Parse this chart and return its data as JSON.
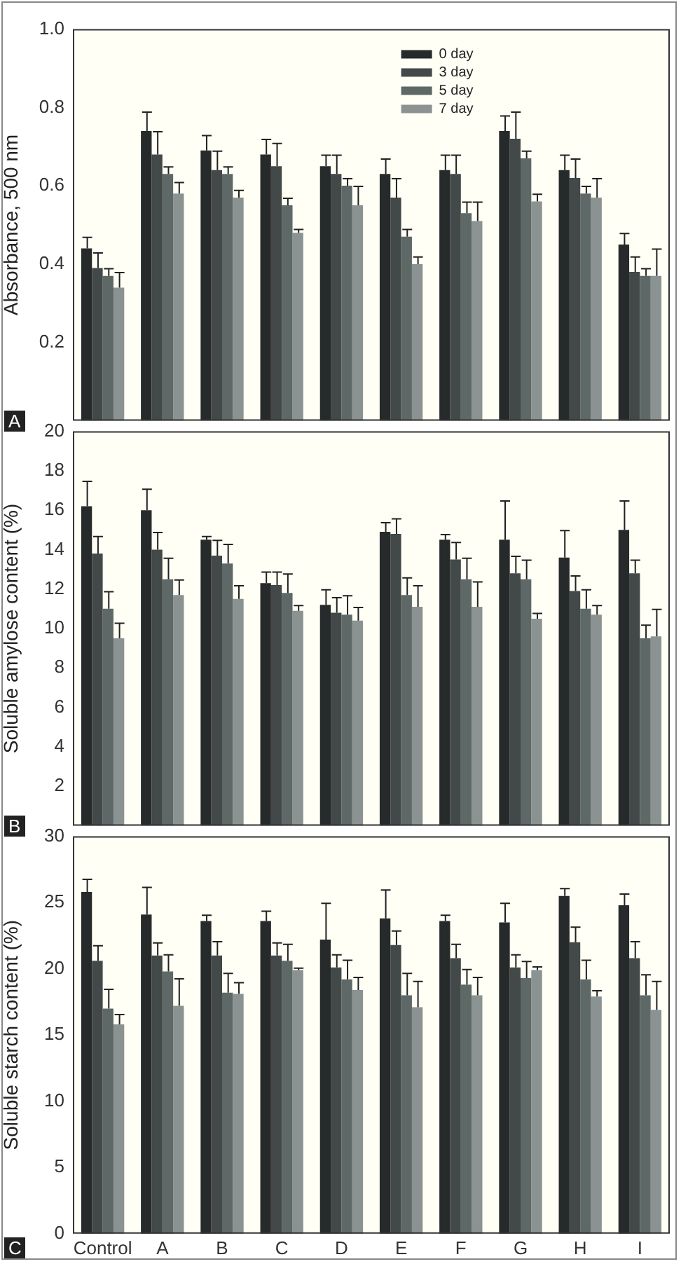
{
  "chart_data": [
    {
      "type": "bar",
      "ylabel": "Absorbance, 500 nm",
      "categories": [
        null,
        null,
        null,
        null,
        null,
        null,
        null,
        null,
        null,
        null
      ],
      "ylim": [
        0,
        1
      ],
      "yticks": [
        0.2,
        0.4,
        0.6,
        0.8,
        {
          "value": 1,
          "label": "1.0"
        }
      ],
      "grid": false,
      "legend": "top",
      "tick_labels": "y",
      "annotations": [
        "A"
      ],
      "series": [
        {
          "name": "0 day",
          "color": "#262a2a",
          "values": [
            0.44,
            0.74,
            0.69,
            0.68,
            0.65,
            0.63,
            0.64,
            0.74,
            0.64,
            0.45
          ],
          "errors": [
            0.03,
            0.05,
            0.04,
            0.04,
            0.03,
            0.04,
            0.04,
            0.04,
            0.04,
            0.03
          ]
        },
        {
          "name": "3 day",
          "color": "#424948",
          "values": [
            0.39,
            0.68,
            0.64,
            0.65,
            0.63,
            0.57,
            0.63,
            0.72,
            0.62,
            0.38
          ],
          "errors": [
            0.04,
            0.06,
            0.05,
            0.06,
            0.05,
            0.05,
            0.05,
            0.07,
            0.05,
            0.04
          ]
        },
        {
          "name": "5 day",
          "color": "#5e6866",
          "values": [
            0.37,
            0.63,
            0.63,
            0.55,
            0.6,
            0.47,
            0.53,
            0.67,
            0.58,
            0.37
          ],
          "errors": [
            0.02,
            0.02,
            0.02,
            0.02,
            0.02,
            0.02,
            0.03,
            0.02,
            0.02,
            0.02
          ]
        },
        {
          "name": "7 day",
          "color": "#8a9391",
          "values": [
            0.34,
            0.58,
            0.57,
            0.48,
            0.55,
            0.4,
            0.51,
            0.56,
            0.57,
            0.37
          ],
          "errors": [
            0.04,
            0.03,
            0.02,
            0.01,
            0.05,
            0.02,
            0.05,
            0.02,
            0.05,
            0.07
          ]
        }
      ]
    },
    {
      "type": "bar",
      "ylabel": "Soluble amylose content (%)",
      "categories": [
        null,
        null,
        null,
        null,
        null,
        null,
        null,
        null,
        null,
        null
      ],
      "ylim": [
        0,
        20
      ],
      "yticks": [
        2,
        4,
        6,
        8,
        10,
        12,
        14,
        16,
        18,
        20
      ],
      "grid": false,
      "legend": false,
      "tick_labels": "y",
      "annotations": [
        "B"
      ],
      "series": [
        {
          "color": "#262a2a",
          "values": [
            16.2,
            16.0,
            14.5,
            12.3,
            11.2,
            14.9,
            14.5,
            14.5,
            13.6,
            15.0
          ],
          "errors": [
            1.3,
            1.1,
            0.2,
            0.6,
            0.8,
            0.5,
            0.3,
            2.0,
            1.4,
            1.5
          ]
        },
        {
          "color": "#424948",
          "values": [
            13.8,
            14.0,
            13.7,
            12.2,
            10.8,
            14.8,
            13.5,
            12.8,
            11.9,
            12.8
          ],
          "errors": [
            0.9,
            0.9,
            0.8,
            0.7,
            0.8,
            0.8,
            0.9,
            0.9,
            0.8,
            0.7
          ]
        },
        {
          "color": "#5e6866",
          "values": [
            11.0,
            12.5,
            13.3,
            11.8,
            10.7,
            11.7,
            12.5,
            12.5,
            11.0,
            9.5
          ],
          "errors": [
            0.9,
            1.1,
            1.0,
            1.0,
            1.0,
            0.9,
            1.1,
            1.0,
            1.0,
            0.7
          ]
        },
        {
          "color": "#8a9391",
          "values": [
            9.5,
            11.7,
            11.5,
            10.9,
            10.4,
            11.1,
            11.1,
            10.5,
            10.7,
            9.6
          ],
          "errors": [
            0.8,
            0.8,
            0.7,
            0.3,
            0.7,
            1.1,
            1.3,
            0.3,
            0.5,
            1.4
          ]
        }
      ]
    },
    {
      "type": "bar",
      "ylabel": "Soluble starch content (%)",
      "categories": [
        "Control",
        "A",
        "B",
        "C",
        "D",
        "E",
        "F",
        "G",
        "H",
        "I"
      ],
      "ylim": [
        0,
        30
      ],
      "yticks": [
        0,
        5,
        10,
        15,
        20,
        25,
        30
      ],
      "grid": false,
      "legend": false,
      "annotations": [
        "C"
      ],
      "series": [
        {
          "color": "#262a2a",
          "values": [
            25.8,
            24.1,
            23.6,
            23.6,
            22.2,
            23.8,
            23.6,
            23.5,
            25.5,
            24.8
          ],
          "errors": [
            1.0,
            2.1,
            0.5,
            0.8,
            2.8,
            2.2,
            0.5,
            1.5,
            0.6,
            0.9
          ]
        },
        {
          "color": "#424948",
          "values": [
            20.6,
            21.0,
            21.0,
            21.0,
            20.1,
            21.8,
            20.8,
            20.1,
            22.0,
            20.8
          ],
          "errors": [
            1.2,
            1.0,
            1.1,
            1.0,
            1.0,
            1.1,
            1.1,
            1.0,
            1.2,
            1.3
          ]
        },
        {
          "color": "#5e6866",
          "values": [
            17.0,
            19.8,
            18.2,
            20.6,
            19.2,
            18.0,
            18.8,
            19.3,
            19.2,
            18.0
          ],
          "errors": [
            1.5,
            1.3,
            1.5,
            1.3,
            1.5,
            1.7,
            1.2,
            1.3,
            1.5,
            1.6
          ]
        },
        {
          "color": "#8a9391",
          "values": [
            15.8,
            17.2,
            18.1,
            19.9,
            18.4,
            17.1,
            18.0,
            19.9,
            17.9,
            16.9
          ],
          "errors": [
            0.8,
            2.1,
            0.9,
            0.2,
            1.0,
            2.0,
            1.4,
            0.3,
            0.5,
            2.2
          ]
        }
      ]
    }
  ]
}
